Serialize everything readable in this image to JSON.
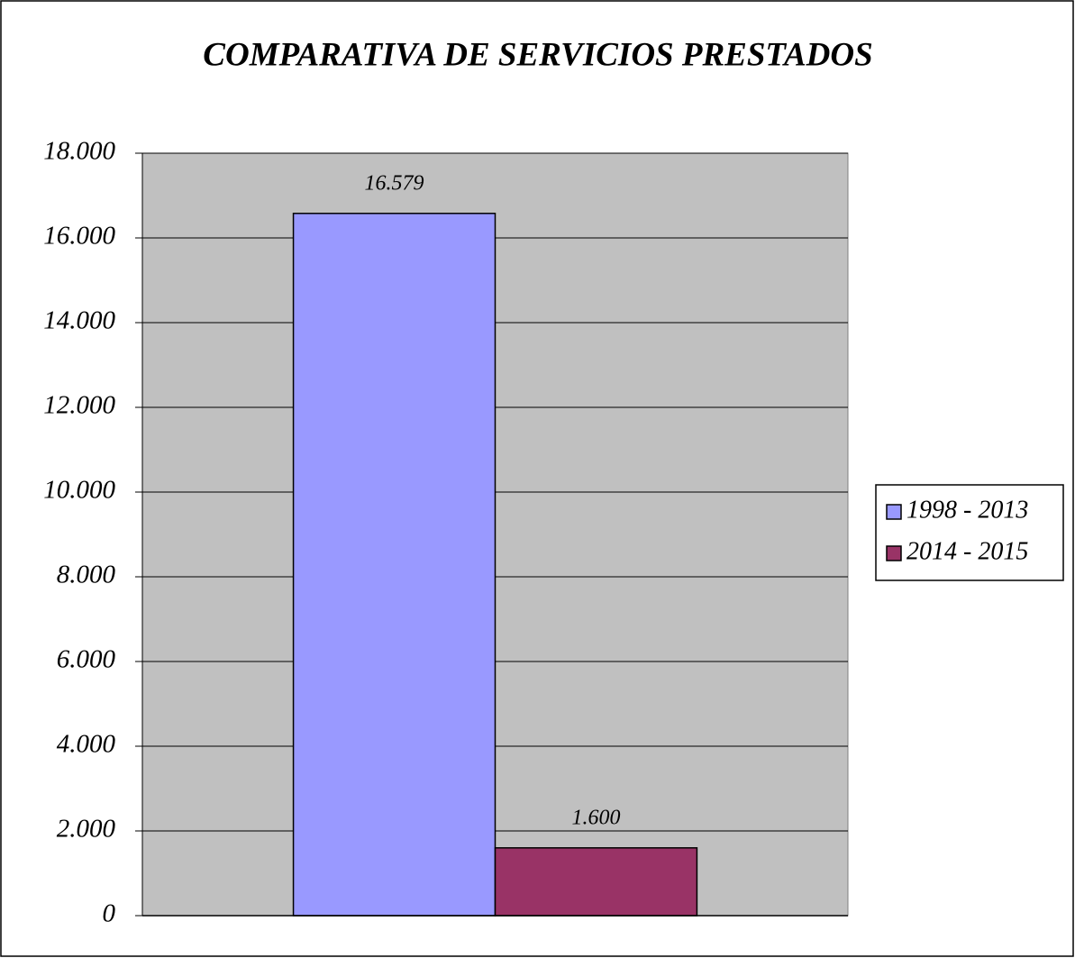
{
  "chart_data": {
    "type": "bar",
    "title": "COMPARATIVA DE SERVICIOS PRESTADOS",
    "categories": [
      null
    ],
    "series": [
      {
        "name": "1998 - 2013",
        "color": "#9999ff",
        "values": [
          16579
        ],
        "value_labels": [
          "16.579"
        ]
      },
      {
        "name": "2014 - 2015",
        "color": "#993366",
        "values": [
          1600
        ],
        "value_labels": [
          "1.600"
        ]
      }
    ],
    "ylim": [
      0,
      18000
    ],
    "yticks": [
      0,
      {
        "value": 2000,
        "label": "2.000"
      },
      {
        "value": 4000,
        "label": "4.000"
      },
      {
        "value": 6000,
        "label": "6.000"
      },
      {
        "value": 8000,
        "label": "8.000"
      },
      {
        "value": 10000,
        "label": "10.000"
      },
      {
        "value": 12000,
        "label": "12.000"
      },
      {
        "value": 14000,
        "label": "14.000"
      },
      {
        "value": 16000,
        "label": "16.000"
      },
      {
        "value": 18000,
        "label": "18.000"
      }
    ],
    "grid": true,
    "plot_background": "#c0c0c0",
    "legend": "right"
  }
}
